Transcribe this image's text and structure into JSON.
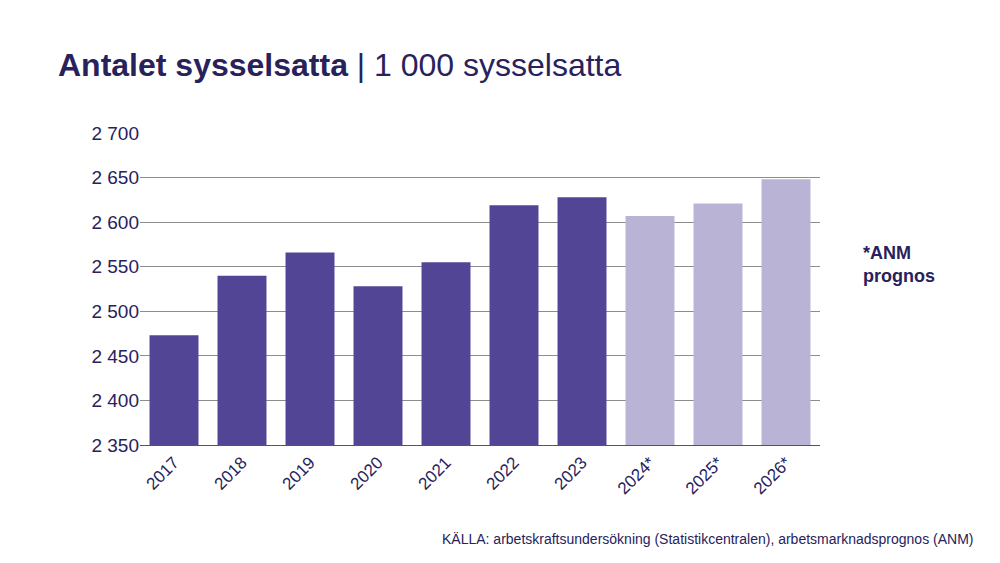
{
  "chart_data": {
    "type": "bar",
    "title": "Antalet sysselsatta | 1 000 sysselsatta",
    "categories": [
      "2017",
      "2018",
      "2019",
      "2020",
      "2021",
      "2022",
      "2023",
      "2024*",
      "2025*",
      "2026*"
    ],
    "values": [
      2473,
      2540,
      2566,
      2528,
      2555,
      2619,
      2628,
      2607,
      2621,
      2648
    ],
    "colors": [
      "#534595",
      "#534595",
      "#534595",
      "#534595",
      "#534595",
      "#534595",
      "#534595",
      "#b9b4d6",
      "#b9b4d6",
      "#b9b4d6"
    ],
    "ylim": [
      2350,
      2700
    ],
    "yticks": [
      {
        "value": 2350,
        "label": "2 350"
      },
      {
        "value": 2400,
        "label": "2 400"
      },
      {
        "value": 2450,
        "label": "2 450"
      },
      {
        "value": 2500,
        "label": "2 500"
      },
      {
        "value": 2550,
        "label": "2 550"
      },
      {
        "value": 2600,
        "label": "2 600"
      },
      {
        "value": 2650,
        "label": "2 650"
      },
      {
        "value": 2700,
        "label": "2 700"
      }
    ],
    "grid": true,
    "annotations": [
      "*ANM\nprognos",
      "KÄLLA: arbetskraftsundersökning (Statistikcentralen), arbetsmarknadsprognos (ANM)"
    ]
  }
}
